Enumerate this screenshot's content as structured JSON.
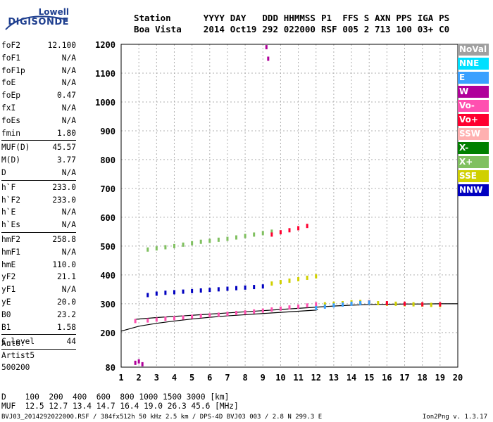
{
  "logo": {
    "line1": "Lowell",
    "line2": "DIGISONDE"
  },
  "header": {
    "labels": [
      "Station",
      "YYYY",
      "DAY",
      "DDD",
      "HHMMSS",
      "P1",
      "FFS",
      "S",
      "AXN",
      "PPS",
      "IGA",
      "PS"
    ],
    "values": [
      "Boa Vista",
      "2014",
      "Oct19",
      "292",
      "022000",
      "RSF",
      "005",
      "2",
      "713",
      "100",
      "03+",
      "C0"
    ]
  },
  "params": {
    "group1": [
      {
        "label": "foF2",
        "value": "12.100"
      },
      {
        "label": "foF1",
        "value": "N/A"
      },
      {
        "label": "foF1p",
        "value": "N/A"
      },
      {
        "label": "foE",
        "value": "N/A"
      },
      {
        "label": "foEp",
        "value": "0.47"
      },
      {
        "label": "fxI",
        "value": "N/A"
      },
      {
        "label": "foEs",
        "value": "N/A"
      },
      {
        "label": "fmin",
        "value": "1.80"
      }
    ],
    "group2": [
      {
        "label": "MUF(D)",
        "value": "45.57"
      },
      {
        "label": "M(D)",
        "value": "3.77"
      },
      {
        "label": "D",
        "value": "N/A"
      }
    ],
    "group3": [
      {
        "label": "h`F",
        "value": "233.0"
      },
      {
        "label": "h`F2",
        "value": "233.0"
      },
      {
        "label": "h`E",
        "value": "N/A"
      },
      {
        "label": "h`Es",
        "value": "N/A"
      }
    ],
    "group4": [
      {
        "label": "hmF2",
        "value": "258.8"
      },
      {
        "label": "hmF1",
        "value": "N/A"
      },
      {
        "label": "hmE",
        "value": "110.0"
      },
      {
        "label": "yF2",
        "value": "21.1"
      },
      {
        "label": "yF1",
        "value": "N/A"
      },
      {
        "label": "yE",
        "value": "20.0"
      },
      {
        "label": "B0",
        "value": "23.2"
      },
      {
        "label": "B1",
        "value": "1.58"
      }
    ],
    "group5": [
      {
        "label": "C-level",
        "value": "44"
      }
    ]
  },
  "auto": [
    "Auto:",
    "Artist5",
    "500200"
  ],
  "legend": [
    {
      "label": "NoVal",
      "color": "#a0a0a0"
    },
    {
      "label": "NNE",
      "color": "#00e0ff"
    },
    {
      "label": "E",
      "color": "#3aa0ff"
    },
    {
      "label": "W",
      "color": "#b0009a"
    },
    {
      "label": "Vo-",
      "color": "#ff50b0"
    },
    {
      "label": "Vo+",
      "color": "#ff0030"
    },
    {
      "label": "SSW",
      "color": "#ffb0b0"
    },
    {
      "label": "X-",
      "color": "#008000"
    },
    {
      "label": "X+",
      "color": "#80c060"
    },
    {
      "label": "SSE",
      "color": "#d0d000"
    },
    {
      "label": "NNW",
      "color": "#0000c0"
    }
  ],
  "bottom": {
    "line1": "D    100  200  400  600  800 1000 1500 3000 [km]",
    "line2": "MUF  12.5 12.7 13.4 14.7 16.4 19.0 26.3 45.6 [MHz]",
    "footer": "BVJ03_2014292022000.RSF / 384fx512h 50 kHz 2.5 km / DPS-4D BVJ03 003 / 2.8 N 299.3 E",
    "version": "Ion2Png v. 1.3.17"
  },
  "chart_data": {
    "type": "scatter",
    "xlim": [
      1,
      20
    ],
    "ylim": [
      80,
      1200
    ],
    "xticks": [
      "1",
      "2",
      "3",
      "4",
      "5",
      "6",
      "7",
      "8",
      "9",
      "10",
      "11",
      "12",
      "13",
      "14",
      "15",
      "16",
      "17",
      "18",
      "19",
      "20"
    ],
    "yticks": [
      "80",
      "200",
      "300",
      "400",
      "500",
      "600",
      "700",
      "800",
      "900",
      "1000",
      "1100",
      "1200"
    ],
    "grid": true,
    "series": [
      {
        "name": "Vo-",
        "color": "#ff50b0",
        "x": [
          1.8,
          2.5,
          3.0,
          3.5,
          4.0,
          4.5,
          5.0,
          5.5,
          6.0,
          6.5,
          7.0,
          7.5,
          8.0,
          8.5,
          9.0,
          9.5,
          10.0,
          10.5,
          11.0,
          11.5,
          12.0
        ],
        "y": [
          240,
          242,
          245,
          248,
          250,
          252,
          255,
          258,
          260,
          262,
          265,
          268,
          270,
          273,
          276,
          280,
          283,
          287,
          290,
          294,
          298
        ]
      },
      {
        "name": "X+",
        "color": "#80c060",
        "x": [
          2.5,
          3.0,
          3.5,
          4.0,
          4.5,
          5.0,
          5.5,
          6.0,
          6.5,
          7.0,
          7.5,
          8.0,
          8.5,
          9.0,
          9.5
        ],
        "y": [
          488,
          492,
          496,
          500,
          505,
          510,
          515,
          518,
          522,
          525,
          530,
          535,
          540,
          545,
          550
        ]
      },
      {
        "name": "NNW",
        "color": "#0000c0",
        "x": [
          2.5,
          3.0,
          3.5,
          4.0,
          4.5,
          5.0,
          5.5,
          6.0,
          6.5,
          7.0,
          7.5,
          8.0,
          8.5,
          9.0
        ],
        "y": [
          330,
          335,
          338,
          340,
          342,
          344,
          346,
          348,
          350,
          352,
          354,
          356,
          358,
          360
        ]
      },
      {
        "name": "SSE",
        "color": "#d0d000",
        "x": [
          9.5,
          10.0,
          10.5,
          11.0,
          11.5,
          12.0,
          12.5,
          13.0,
          13.5,
          14.0,
          14.5,
          15.0,
          15.5,
          16.0,
          16.5,
          17.0,
          17.5,
          18.0,
          18.5,
          19.0
        ],
        "y": [
          370,
          375,
          380,
          385,
          390,
          395,
          298,
          300,
          302,
          305,
          306,
          304,
          302,
          300,
          300,
          298,
          298,
          297,
          296,
          295
        ]
      },
      {
        "name": "Vo+",
        "color": "#ff0030",
        "x": [
          9.5,
          10.0,
          10.5,
          11.0,
          11.5,
          15.0,
          16.0,
          17.0,
          18.0,
          19.0
        ],
        "y": [
          540,
          548,
          555,
          562,
          570,
          305,
          302,
          300,
          298,
          298
        ]
      },
      {
        "name": "E",
        "color": "#3aa0ff",
        "x": [
          12.0,
          12.5,
          13.0,
          13.5,
          14.0,
          14.5,
          15.0
        ],
        "y": [
          285,
          290,
          294,
          297,
          300,
          302,
          304
        ]
      },
      {
        "name": "W",
        "color": "#b0009a",
        "x": [
          1.8,
          2.0,
          2.2,
          9.2,
          9.3
        ],
        "y": [
          95,
          100,
          90,
          1190,
          1150
        ]
      }
    ],
    "traces": [
      {
        "name": "o-trace",
        "x": [
          1.0,
          2.0,
          3.0,
          4.0,
          5.0,
          6.0,
          7.0,
          8.0,
          9.0,
          10.0,
          11.0,
          12.0,
          12.1
        ],
        "y": [
          205,
          222,
          232,
          240,
          247,
          253,
          258,
          262,
          266,
          270,
          274,
          278,
          280
        ]
      },
      {
        "name": "profile",
        "x": [
          1.8,
          3.0,
          4.0,
          5.0,
          6.0,
          7.0,
          8.0,
          9.0,
          10.0,
          11.0,
          12.0,
          13.0,
          14.0,
          15.0,
          16.0,
          17.0,
          18.0,
          19.0,
          20.0
        ],
        "y": [
          246,
          252,
          256,
          260,
          264,
          268,
          272,
          276,
          280,
          284,
          288,
          292,
          295,
          297,
          298,
          299,
          299,
          300,
          300
        ]
      }
    ]
  }
}
